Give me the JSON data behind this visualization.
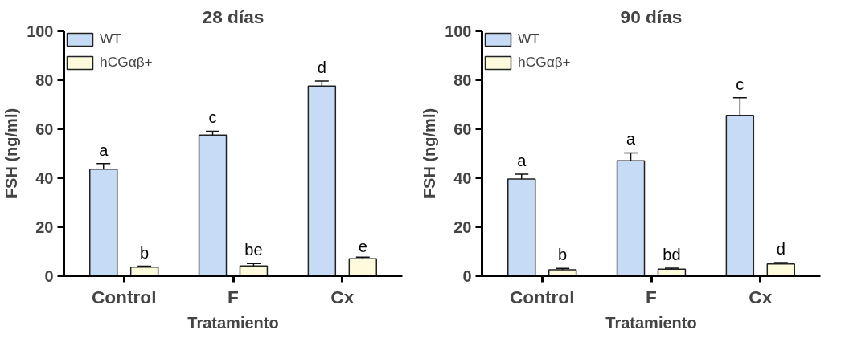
{
  "chart_data": [
    {
      "type": "bar",
      "title": "28 días",
      "xlabel": "Tratamiento",
      "ylabel": "FSH (ng/ml)",
      "categories": [
        "Control",
        "F",
        "Cx"
      ],
      "ylim": [
        0,
        100
      ],
      "yticks": [
        0,
        20,
        40,
        60,
        80,
        100
      ],
      "grid": false,
      "legend": "top left",
      "series": [
        {
          "name": "WT",
          "color": "#c6dbf5",
          "values": [
            43.5,
            57.5,
            77.5
          ],
          "errors": [
            [
              43.5,
              45.8
            ],
            [
              57.5,
              59
            ],
            [
              77.5,
              79.5
            ]
          ],
          "value_labels": [
            "a",
            "c",
            "d"
          ]
        },
        {
          "name": "hCGαβ+",
          "color": "#fdfbdc",
          "values": [
            3.5,
            4,
            7
          ],
          "errors": [
            [
              3.5,
              3.9
            ],
            [
              4,
              5
            ],
            [
              7,
              7.6
            ]
          ],
          "value_labels": [
            "b",
            "be",
            "e"
          ]
        }
      ]
    },
    {
      "type": "bar",
      "title": "90 días",
      "xlabel": "Tratamiento",
      "ylabel": "FSH (ng/ml)",
      "categories": [
        "Control",
        "F",
        "Cx"
      ],
      "ylim": [
        0,
        100
      ],
      "yticks": [
        0,
        20,
        40,
        60,
        80,
        100
      ],
      "grid": false,
      "legend": "top left",
      "series": [
        {
          "name": "WT",
          "color": "#c6dbf5",
          "values": [
            39.5,
            47,
            65.5
          ],
          "errors": [
            [
              39.5,
              41.5
            ],
            [
              47,
              50.2
            ],
            [
              65.5,
              72.7
            ]
          ],
          "value_labels": [
            "a",
            "a",
            "c"
          ]
        },
        {
          "name": "hCGαβ+",
          "color": "#fdfbdc",
          "values": [
            2.5,
            2.7,
            4.8
          ],
          "errors": [
            [
              2.5,
              3
            ],
            [
              2.7,
              3.1
            ],
            [
              4.8,
              5.4
            ]
          ],
          "value_labels": [
            "b",
            "bd",
            "d"
          ]
        }
      ]
    }
  ]
}
